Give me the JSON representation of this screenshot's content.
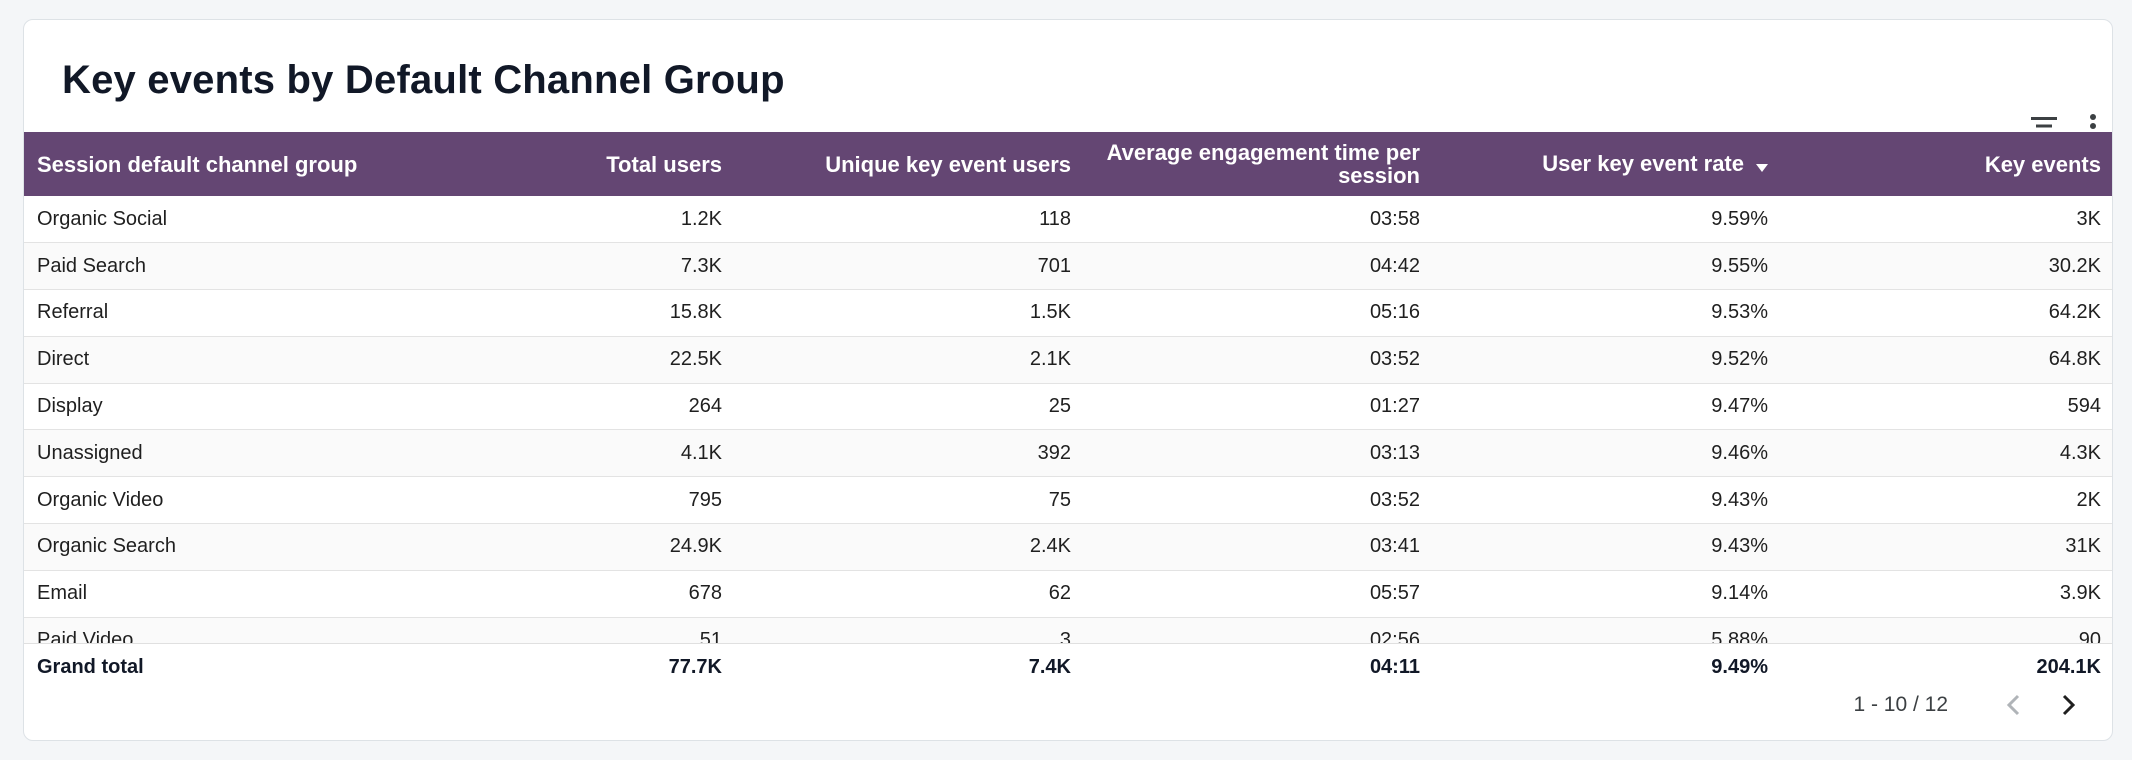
{
  "title": "Key events by Default Channel Group",
  "columns": [
    {
      "label": "Session default channel group"
    },
    {
      "label": "Total users"
    },
    {
      "label": "Unique key event users"
    },
    {
      "label": "Average engagement time per session"
    },
    {
      "label": "User key event rate"
    },
    {
      "label": "Key events"
    }
  ],
  "sort": {
    "column": "User key event rate",
    "direction": "descending"
  },
  "rows": [
    [
      "Organic Social",
      "1.2K",
      "118",
      "03:58",
      "9.59%",
      "3K"
    ],
    [
      "Paid Search",
      "7.3K",
      "701",
      "04:42",
      "9.55%",
      "30.2K"
    ],
    [
      "Referral",
      "15.8K",
      "1.5K",
      "05:16",
      "9.53%",
      "64.2K"
    ],
    [
      "Direct",
      "22.5K",
      "2.1K",
      "03:52",
      "9.52%",
      "64.8K"
    ],
    [
      "Display",
      "264",
      "25",
      "01:27",
      "9.47%",
      "594"
    ],
    [
      "Unassigned",
      "4.1K",
      "392",
      "03:13",
      "9.46%",
      "4.3K"
    ],
    [
      "Organic Video",
      "795",
      "75",
      "03:52",
      "9.43%",
      "2K"
    ],
    [
      "Organic Search",
      "24.9K",
      "2.4K",
      "03:41",
      "9.43%",
      "31K"
    ],
    [
      "Email",
      "678",
      "62",
      "05:57",
      "9.14%",
      "3.9K"
    ],
    [
      "Paid Video",
      "51",
      "3",
      "02:56",
      "5.88%",
      "90"
    ]
  ],
  "total": [
    "Grand total",
    "77.7K",
    "7.4K",
    "04:11",
    "9.49%",
    "204.1K"
  ],
  "pagination": {
    "label": "1 - 10 / 12"
  },
  "icons": {
    "filter": "filter-icon",
    "more": "more-vert-icon",
    "prev": "chevron-left-icon",
    "next": "chevron-right-icon",
    "sort": "sort-down-icon"
  },
  "colors": {
    "header_bg": "#644673",
    "header_text": "#ffffff"
  }
}
